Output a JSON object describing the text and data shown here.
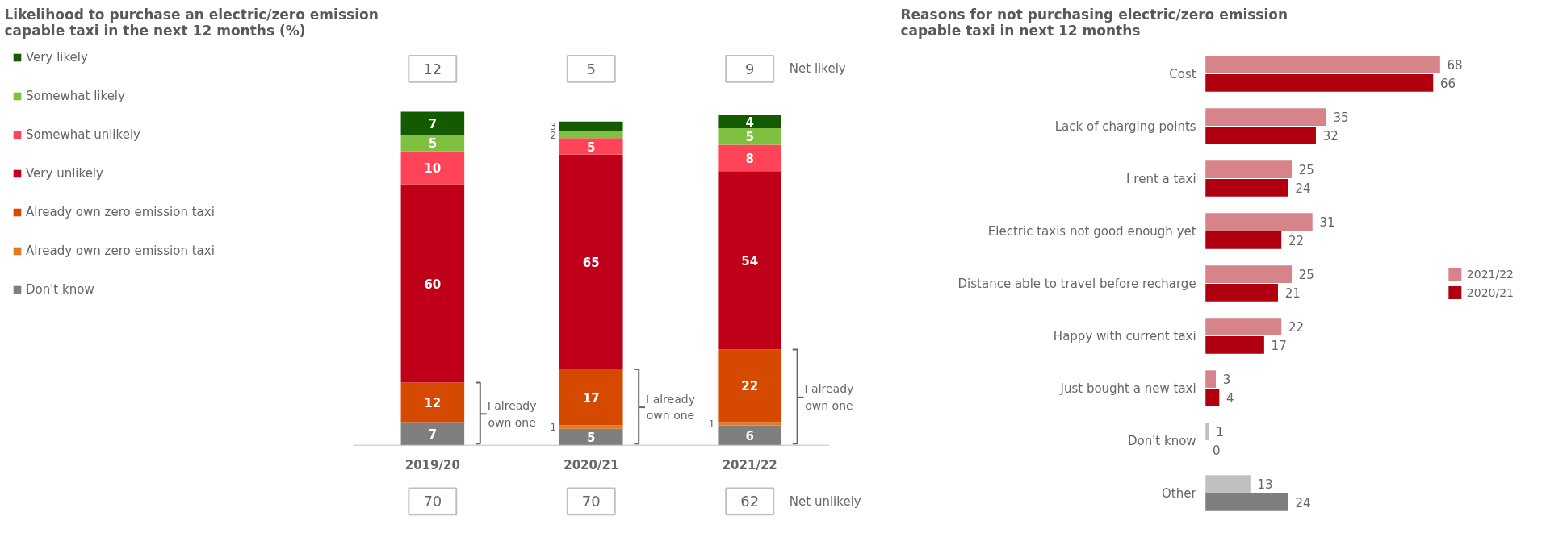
{
  "chart_data": [
    {
      "type": "bar",
      "stacked": true,
      "title": "Likelihood to purchase an electric/zero emission capable taxi in the next 12 months (%)",
      "categories": [
        "2019/20",
        "2020/21",
        "2021/22"
      ],
      "legend": "left",
      "series": [
        {
          "name": "Don't know",
          "color": "#7f7f7f",
          "values": [
            7,
            5,
            6
          ],
          "value_labels": [
            "7",
            "5",
            "6"
          ]
        },
        {
          "name": "Already own zero emission taxi",
          "color": "#e07a1f",
          "values": [
            0,
            1,
            1
          ],
          "value_labels": [
            null,
            "1",
            "1"
          ]
        },
        {
          "name": "Already own zero emission taxi",
          "color": "#d54a00",
          "values": [
            12,
            17,
            22
          ],
          "value_labels": [
            "12",
            "17",
            "22"
          ]
        },
        {
          "name": "Very unlikely",
          "color": "#c00018",
          "values": [
            60,
            65,
            54
          ],
          "value_labels": [
            "60",
            "65",
            "54"
          ]
        },
        {
          "name": "Somewhat unlikely",
          "color": "#ff4458",
          "values": [
            10,
            5,
            8
          ],
          "value_labels": [
            "10",
            "5",
            "8"
          ]
        },
        {
          "name": "Somewhat likely",
          "color": "#80c040",
          "values": [
            5,
            2,
            5
          ],
          "value_labels": [
            "5",
            "2",
            "5"
          ]
        },
        {
          "name": "Very likely",
          "color": "#145a00",
          "values": [
            7,
            3,
            4
          ],
          "value_labels": [
            "7",
            "3",
            "4"
          ]
        }
      ],
      "annotations": [
        "12",
        "5",
        "9",
        "Net likely",
        "70",
        "70",
        "62",
        "Net unlikely",
        "I already own one",
        "I already own one",
        "I already own one"
      ]
    },
    {
      "type": "bar",
      "orientation": "horizontal",
      "data_labels": true,
      "legend": "right",
      "title": "Reasons for not purchasing electric/zero emission capable taxi in next 12 months",
      "categories": [
        "Cost",
        "Lack of charging points",
        "I rent a taxi",
        "Electric taxis not good enough yet",
        "Distance able to travel before recharge",
        "Happy with current taxi",
        "Just bought a new taxi",
        "Don't know",
        "Other"
      ],
      "series": [
        {
          "name": "2021/22",
          "color": "#d7838a",
          "values": [
            68,
            35,
            25,
            31,
            25,
            22,
            3,
            1,
            13
          ],
          "colors": [
            "#d7838a",
            "#d7838a",
            "#d7838a",
            "#d7838a",
            "#d7838a",
            "#d7838a",
            "#d7838a",
            "#c0c0c0",
            "#c0c0c0"
          ]
        },
        {
          "name": "2020/21",
          "color": "#b0000f",
          "values": [
            66,
            32,
            24,
            22,
            21,
            17,
            4,
            0,
            24
          ],
          "colors": [
            "#b0000f",
            "#b0000f",
            "#b0000f",
            "#b0000f",
            "#b0000f",
            "#b0000f",
            "#b0000f",
            "#7f7f7f",
            "#7f7f7f"
          ]
        }
      ]
    }
  ]
}
